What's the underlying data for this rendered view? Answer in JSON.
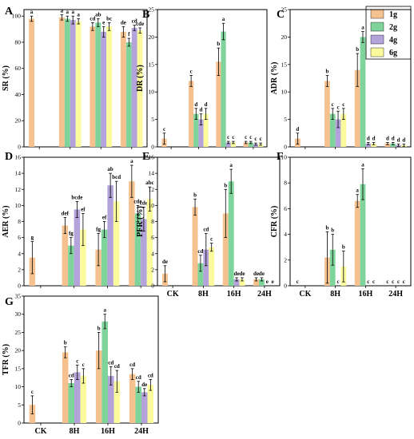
{
  "colors": {
    "1g": "#f5c28f",
    "2g": "#7ed49a",
    "4g": "#b3a3da",
    "6g": "#fbfb9e",
    "error": "#000000"
  },
  "legend": {
    "placement": "top-right",
    "entries": [
      "1g",
      "2g",
      "4g",
      "6g"
    ]
  },
  "categories": [
    "CK",
    "8H",
    "16H",
    "24H"
  ],
  "chart_data": [
    {
      "id": "A",
      "type": "bar",
      "panel_label": "A",
      "ylabel": "SR (%)",
      "ylim": [
        0,
        105
      ],
      "yticks": [
        0,
        20,
        40,
        60,
        80,
        100
      ],
      "categories": [
        "CK",
        "8H",
        "16H",
        "24H"
      ],
      "series": [
        {
          "name": "1g",
          "values": [
            98,
            99,
            92,
            88
          ],
          "errors": [
            2,
            2,
            3,
            4
          ],
          "letters": [
            "a",
            "a",
            "cd",
            "de"
          ]
        },
        {
          "name": "2g",
          "values": [
            null,
            98,
            95,
            80
          ],
          "errors": [
            null,
            2,
            3,
            3
          ],
          "letters": [
            "",
            "a",
            "ab",
            "f"
          ]
        },
        {
          "name": "4g",
          "values": [
            null,
            97,
            88,
            91
          ],
          "errors": [
            null,
            3,
            4,
            2
          ],
          "letters": [
            "",
            "a",
            "e",
            "cd"
          ]
        },
        {
          "name": "6g",
          "values": [
            null,
            96,
            92,
            89
          ],
          "errors": [
            null,
            2,
            3,
            2
          ],
          "letters": [
            "",
            "a",
            "bc",
            "cde"
          ]
        }
      ]
    },
    {
      "id": "B",
      "type": "bar",
      "panel_label": "B",
      "ylabel": "DR (%)",
      "ylim": [
        0,
        25
      ],
      "yticks": [
        0,
        5,
        10,
        15,
        20,
        25
      ],
      "categories": [
        "CK",
        "8H",
        "16H",
        "24H"
      ],
      "series": [
        {
          "name": "1g",
          "values": [
            1.5,
            12,
            15.5,
            0.8
          ],
          "errors": [
            1,
            1,
            2.5,
            0.2
          ],
          "letters": [
            "c",
            "c",
            "b",
            "c"
          ]
        },
        {
          "name": "2g",
          "values": [
            null,
            6,
            21,
            0.8
          ],
          "errors": [
            null,
            1,
            1.5,
            0.2
          ],
          "letters": [
            "",
            "d",
            "a",
            "c"
          ]
        },
        {
          "name": "4g",
          "values": [
            null,
            5,
            0.8,
            0.5
          ],
          "errors": [
            null,
            1,
            0.2,
            0.2
          ],
          "letters": [
            "",
            "d",
            "c",
            "c"
          ]
        },
        {
          "name": "6g",
          "values": [
            null,
            6,
            0.8,
            0.5
          ],
          "errors": [
            null,
            1,
            0.2,
            0.2
          ],
          "letters": [
            "",
            "d",
            "c",
            "c"
          ]
        }
      ]
    },
    {
      "id": "C",
      "type": "bar",
      "panel_label": "C",
      "ylabel": "ADR (%)",
      "ylim": [
        0,
        25
      ],
      "yticks": [
        0,
        5,
        10,
        15,
        20,
        25
      ],
      "categories": [
        "CK",
        "8H",
        "16H",
        "24H"
      ],
      "series": [
        {
          "name": "1g",
          "values": [
            1.5,
            12,
            14,
            0.6
          ],
          "errors": [
            1,
            1,
            3,
            0.2
          ],
          "letters": [
            "d",
            "b",
            "b",
            "d"
          ]
        },
        {
          "name": "2g",
          "values": [
            null,
            6,
            20,
            0.6
          ],
          "errors": [
            null,
            1,
            1,
            0.2
          ],
          "letters": [
            "",
            "c",
            "a",
            "d"
          ]
        },
        {
          "name": "4g",
          "values": [
            null,
            5,
            0.6,
            0.3
          ],
          "errors": [
            null,
            1.5,
            0.2,
            0.2
          ],
          "letters": [
            "",
            "c",
            "d",
            "d"
          ]
        },
        {
          "name": "6g",
          "values": [
            null,
            6,
            0.6,
            0.3
          ],
          "errors": [
            null,
            1,
            0.2,
            0.2
          ],
          "letters": [
            "",
            "c",
            "d",
            "d"
          ]
        }
      ]
    },
    {
      "id": "D",
      "type": "bar",
      "panel_label": "D",
      "ylabel": "AER (%)",
      "ylim": [
        0,
        16
      ],
      "yticks": [
        0,
        2,
        4,
        6,
        8,
        10,
        12,
        14,
        16
      ],
      "categories": [
        "CK",
        "8H",
        "16H",
        "24H"
      ],
      "series": [
        {
          "name": "1g",
          "values": [
            3.5,
            7.5,
            4.5,
            13
          ],
          "errors": [
            2,
            1,
            2,
            2
          ],
          "letters": [
            "g",
            "def",
            "fg",
            "a"
          ]
        },
        {
          "name": "2g",
          "values": [
            null,
            5,
            7,
            9
          ],
          "errors": [
            null,
            1,
            1,
            1
          ],
          "letters": [
            "",
            "fg",
            "ef",
            "cde"
          ]
        },
        {
          "name": "4g",
          "values": [
            null,
            9.5,
            12.5,
            8.3
          ],
          "errors": [
            null,
            1,
            1.5,
            1.5
          ],
          "letters": [
            "",
            "bcde",
            "ab",
            "cde"
          ]
        },
        {
          "name": "6g",
          "values": [
            null,
            7,
            10.5,
            10.8
          ],
          "errors": [
            null,
            2,
            2.5,
            1.5
          ],
          "letters": [
            "",
            "ef",
            "bcd",
            "abc"
          ]
        }
      ]
    },
    {
      "id": "E",
      "type": "bar",
      "panel_label": "E",
      "ylabel": "PFR (%)",
      "ylim": [
        0,
        16
      ],
      "yticks": [
        0,
        2,
        4,
        6,
        8,
        10,
        12,
        14,
        16
      ],
      "categories": [
        "CK",
        "8H",
        "16H",
        "24H"
      ],
      "series": [
        {
          "name": "1g",
          "values": [
            1.5,
            9.8,
            9,
            0.8
          ],
          "errors": [
            1,
            1,
            3,
            0.2
          ],
          "letters": [
            "de",
            "b",
            "b",
            "de"
          ]
        },
        {
          "name": "2g",
          "values": [
            null,
            2.8,
            13,
            0.8
          ],
          "errors": [
            null,
            1,
            1.5,
            0.2
          ],
          "letters": [
            "",
            "cd",
            "a",
            "de"
          ]
        },
        {
          "name": "4g",
          "values": [
            null,
            4.5,
            0.8,
            0
          ],
          "errors": [
            null,
            2,
            0.2,
            0
          ],
          "letters": [
            "",
            "cd",
            "de",
            "e"
          ]
        },
        {
          "name": "6g",
          "values": [
            null,
            4.8,
            0.8,
            0
          ],
          "errors": [
            null,
            0.5,
            0.2,
            0
          ],
          "letters": [
            "",
            "c",
            "de",
            "e"
          ]
        }
      ]
    },
    {
      "id": "F",
      "type": "bar",
      "panel_label": "F",
      "ylabel": "CFR (%)",
      "ylim": [
        0,
        10
      ],
      "yticks": [
        0,
        2,
        4,
        6,
        8,
        10
      ],
      "categories": [
        "CK",
        "8H",
        "16H",
        "24H"
      ],
      "series": [
        {
          "name": "1g",
          "values": [
            0,
            2.2,
            6.6,
            0
          ],
          "errors": [
            0,
            2,
            0.5,
            0
          ],
          "letters": [
            "c",
            "b",
            "a",
            "c"
          ]
        },
        {
          "name": "2g",
          "values": [
            null,
            2.8,
            7.9,
            0
          ],
          "errors": [
            null,
            1.2,
            1.2,
            0
          ],
          "letters": [
            "",
            "b",
            "a",
            "c"
          ]
        },
        {
          "name": "4g",
          "values": [
            null,
            0,
            0,
            0
          ],
          "errors": [
            null,
            0,
            0,
            0
          ],
          "letters": [
            "",
            "c",
            "c",
            "c"
          ]
        },
        {
          "name": "6g",
          "values": [
            null,
            1.5,
            0,
            0
          ],
          "errors": [
            null,
            1.2,
            0,
            0
          ],
          "letters": [
            "",
            "b",
            "c",
            "c"
          ]
        }
      ]
    },
    {
      "id": "G",
      "type": "bar",
      "panel_label": "G",
      "ylabel": "TFR (%)",
      "ylim": [
        0,
        35
      ],
      "yticks": [
        0,
        5,
        10,
        15,
        20,
        25,
        30,
        35
      ],
      "categories": [
        "CK",
        "8H",
        "16H",
        "24H"
      ],
      "series": [
        {
          "name": "1g",
          "values": [
            5,
            19.5,
            20,
            13.5
          ],
          "errors": [
            2.5,
            1.5,
            5,
            1.5
          ],
          "letters": [
            "c",
            "b",
            "b",
            "cd"
          ]
        },
        {
          "name": "2g",
          "values": [
            null,
            11,
            28,
            10
          ],
          "errors": [
            null,
            1,
            2,
            1.5
          ],
          "letters": [
            "",
            "cd",
            "a",
            "cd"
          ]
        },
        {
          "name": "4g",
          "values": [
            null,
            14,
            13,
            8.5
          ],
          "errors": [
            null,
            2,
            2.5,
            1
          ],
          "letters": [
            "",
            "c",
            "cd",
            "de"
          ]
        },
        {
          "name": "6g",
          "values": [
            null,
            13,
            11.5,
            10.5
          ],
          "errors": [
            null,
            2,
            3,
            1.5
          ],
          "letters": [
            "",
            "c",
            "cd",
            "cd"
          ]
        }
      ]
    }
  ]
}
